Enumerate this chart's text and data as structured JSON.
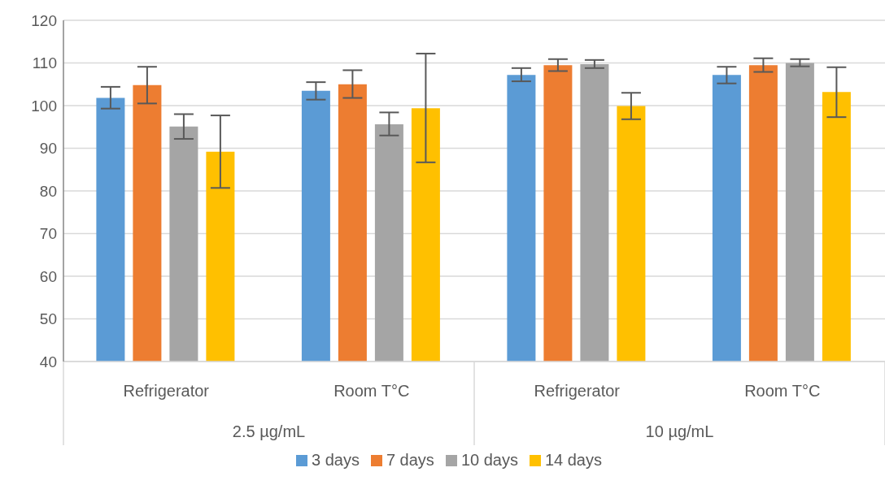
{
  "chart_data": {
    "type": "bar",
    "categories": [
      "Refrigerator",
      "Room T°C",
      "Refrigerator",
      "Room T°C"
    ],
    "annotations": [
      "2.5 µg/mL",
      "10 µg/mL"
    ],
    "series": [
      {
        "name": "3 days",
        "color": "#5b9bd5",
        "values": [
          101.8,
          103.5,
          107.2,
          107.2
        ],
        "errors": [
          [
            99.3,
            104.4
          ],
          [
            101.4,
            105.5
          ],
          [
            105.7,
            108.8
          ],
          [
            105.2,
            109.1
          ]
        ]
      },
      {
        "name": "7 days",
        "color": "#ed7d31",
        "values": [
          104.8,
          105.0,
          109.5,
          109.5
        ],
        "errors": [
          [
            100.5,
            109.1
          ],
          [
            101.8,
            108.3
          ],
          [
            108.1,
            110.9
          ],
          [
            107.9,
            111.1
          ]
        ]
      },
      {
        "name": "10 days",
        "color": "#a5a5a5",
        "values": [
          95.1,
          95.6,
          109.7,
          110.0
        ],
        "errors": [
          [
            92.2,
            98.0
          ],
          [
            93.0,
            98.4
          ],
          [
            108.8,
            110.7
          ],
          [
            109.2,
            110.9
          ]
        ]
      },
      {
        "name": "14 days",
        "color": "#ffc000",
        "values": [
          89.2,
          99.4,
          99.9,
          103.2
        ],
        "errors": [
          [
            80.7,
            97.7
          ],
          [
            86.7,
            112.2
          ],
          [
            96.8,
            103.0
          ],
          [
            97.3,
            109.0
          ]
        ]
      }
    ],
    "ylim": [
      40,
      120
    ],
    "yticks": [
      40,
      50,
      60,
      70,
      80,
      90,
      100,
      110,
      120
    ],
    "grid": "y",
    "legend": "bottom"
  }
}
